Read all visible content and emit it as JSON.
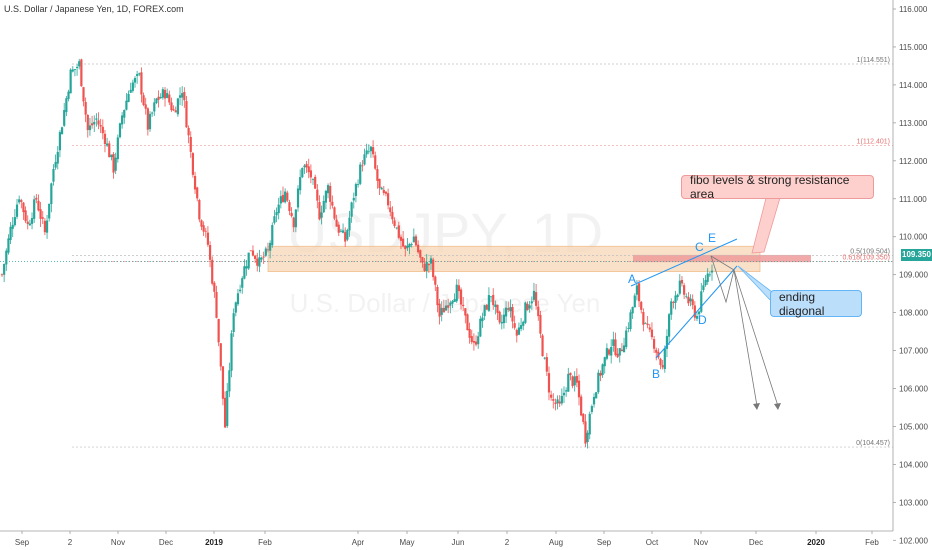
{
  "header": {
    "title": "U.S. Dollar / Japanese Yen, 1D, FOREX.com"
  },
  "watermark": {
    "symbol": "USDJPY, 1D",
    "description": "U.S. Dollar / Japanese Yen"
  },
  "annotations": {
    "resistance_label": "fibo levels & strong resistance area",
    "diagonal_label": "ending diagonal",
    "waves": [
      "A",
      "B",
      "C",
      "D",
      "E"
    ]
  },
  "colors": {
    "up": "#26a69a",
    "down": "#ef5350",
    "zone": "#f5d7b5",
    "zone_red": "#ef9a9a",
    "wave": "#2196f3",
    "arrow": "#787878"
  },
  "chart_data": {
    "type": "candlestick",
    "title": "U.S. Dollar / Japanese Yen, 1D, FOREX.com",
    "xlabel": "",
    "ylabel": "",
    "ylim": [
      102.0,
      116.0
    ],
    "y_ticks": [
      "102.000",
      "103.000",
      "104.000",
      "105.000",
      "106.000",
      "107.000",
      "108.000",
      "109.000",
      "110.000",
      "111.000",
      "112.000",
      "113.000",
      "114.000",
      "115.000",
      "116.000"
    ],
    "x_ticks": [
      {
        "label": "Sep",
        "bold": false
      },
      {
        "label": "2",
        "bold": false
      },
      {
        "label": "Nov",
        "bold": false
      },
      {
        "label": "Dec",
        "bold": false
      },
      {
        "label": "2019",
        "bold": true
      },
      {
        "label": "Feb",
        "bold": false
      },
      {
        "label": "Apr",
        "bold": false
      },
      {
        "label": "May",
        "bold": false
      },
      {
        "label": "Jun",
        "bold": false
      },
      {
        "label": "2",
        "bold": false
      },
      {
        "label": "Aug",
        "bold": false
      },
      {
        "label": "Sep",
        "bold": false
      },
      {
        "label": "Oct",
        "bold": false
      },
      {
        "label": "Nov",
        "bold": false
      },
      {
        "label": "Dec",
        "bold": false
      },
      {
        "label": "2020",
        "bold": true
      },
      {
        "label": "Feb",
        "bold": false
      }
    ],
    "last_price": "109.350",
    "fib_levels": [
      {
        "label": "1(114.551)",
        "value": 114.551
      },
      {
        "label": "1(112.401)",
        "value": 112.401
      },
      {
        "label": "0.5(109.504)",
        "value": 109.504
      },
      {
        "label": "0.618(109.350)",
        "value": 109.35
      },
      {
        "label": "0(104.457)",
        "value": 104.457
      }
    ],
    "price_path": [
      109.0,
      110.2,
      111.1,
      110.3,
      111.0,
      110.1,
      111.8,
      113.0,
      114.3,
      114.55,
      112.8,
      113.1,
      112.6,
      111.8,
      113.2,
      114.0,
      114.2,
      112.9,
      113.6,
      113.8,
      113.3,
      113.9,
      112.2,
      110.6,
      109.8,
      108.0,
      105.0,
      108.1,
      109.0,
      109.7,
      109.3,
      109.6,
      110.7,
      111.2,
      110.4,
      111.9,
      111.6,
      110.6,
      111.3,
      110.3,
      109.9,
      111.1,
      112.0,
      112.3,
      111.2,
      110.9,
      110.2,
      109.6,
      110.0,
      109.2,
      109.3,
      107.9,
      108.3,
      108.6,
      107.8,
      107.1,
      107.9,
      108.5,
      107.6,
      108.2,
      107.4,
      108.1,
      108.5,
      107.0,
      105.7,
      105.5,
      106.3,
      106.1,
      104.7,
      105.9,
      106.6,
      107.2,
      106.9,
      107.7,
      108.6,
      107.6,
      107.2,
      106.5,
      108.3,
      108.7,
      108.3,
      107.9,
      108.9,
      109.35
    ]
  }
}
